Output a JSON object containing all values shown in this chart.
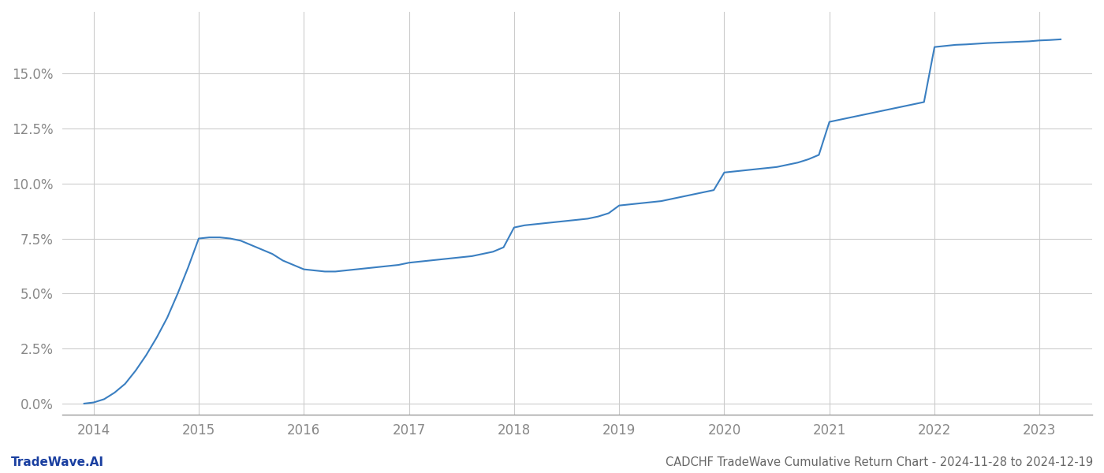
{
  "x_years": [
    2013.91,
    2014.0,
    2014.1,
    2014.2,
    2014.3,
    2014.4,
    2014.5,
    2014.6,
    2014.7,
    2014.8,
    2014.9,
    2015.0,
    2015.1,
    2015.2,
    2015.3,
    2015.4,
    2015.5,
    2015.6,
    2015.7,
    2015.8,
    2015.9,
    2016.0,
    2016.1,
    2016.2,
    2016.3,
    2016.4,
    2016.5,
    2016.6,
    2016.7,
    2016.8,
    2016.9,
    2017.0,
    2017.1,
    2017.2,
    2017.3,
    2017.4,
    2017.5,
    2017.6,
    2017.7,
    2017.8,
    2017.9,
    2018.0,
    2018.1,
    2018.2,
    2018.3,
    2018.4,
    2018.5,
    2018.6,
    2018.7,
    2018.8,
    2018.9,
    2019.0,
    2019.1,
    2019.2,
    2019.3,
    2019.4,
    2019.5,
    2019.6,
    2019.7,
    2019.8,
    2019.9,
    2020.0,
    2020.1,
    2020.2,
    2020.3,
    2020.4,
    2020.5,
    2020.6,
    2020.7,
    2020.8,
    2020.9,
    2021.0,
    2021.1,
    2021.2,
    2021.3,
    2021.4,
    2021.5,
    2021.6,
    2021.7,
    2021.8,
    2021.9,
    2022.0,
    2022.1,
    2022.2,
    2022.3,
    2022.4,
    2022.5,
    2022.6,
    2022.7,
    2022.8,
    2022.9,
    2023.0,
    2023.1,
    2023.2
  ],
  "y_values": [
    0.0,
    0.05,
    0.2,
    0.5,
    0.9,
    1.5,
    2.2,
    3.0,
    3.9,
    5.0,
    6.2,
    7.5,
    7.55,
    7.55,
    7.5,
    7.4,
    7.2,
    7.0,
    6.8,
    6.5,
    6.3,
    6.1,
    6.05,
    6.0,
    6.0,
    6.05,
    6.1,
    6.15,
    6.2,
    6.25,
    6.3,
    6.4,
    6.45,
    6.5,
    6.55,
    6.6,
    6.65,
    6.7,
    6.8,
    6.9,
    7.1,
    8.0,
    8.1,
    8.15,
    8.2,
    8.25,
    8.3,
    8.35,
    8.4,
    8.5,
    8.65,
    9.0,
    9.05,
    9.1,
    9.15,
    9.2,
    9.3,
    9.4,
    9.5,
    9.6,
    9.7,
    10.5,
    10.55,
    10.6,
    10.65,
    10.7,
    10.75,
    10.85,
    10.95,
    11.1,
    11.3,
    12.8,
    12.9,
    13.0,
    13.1,
    13.2,
    13.3,
    13.4,
    13.5,
    13.6,
    13.7,
    16.2,
    16.25,
    16.3,
    16.32,
    16.35,
    16.38,
    16.4,
    16.42,
    16.44,
    16.46,
    16.5,
    16.52,
    16.55
  ],
  "line_color": "#3a7fc1",
  "line_width": 1.5,
  "background_color": "#ffffff",
  "grid_color": "#cccccc",
  "title": "CADCHF TradeWave Cumulative Return Chart - 2024-11-28 to 2024-12-19",
  "footer_left": "TradeWave.AI",
  "ytick_labels": [
    "0.0%",
    "2.5%",
    "5.0%",
    "7.5%",
    "10.0%",
    "12.5%",
    "15.0%"
  ],
  "ytick_values": [
    0.0,
    2.5,
    5.0,
    7.5,
    10.0,
    12.5,
    15.0
  ],
  "xtick_labels": [
    "2014",
    "2015",
    "2016",
    "2017",
    "2018",
    "2019",
    "2020",
    "2021",
    "2022",
    "2023"
  ],
  "xtick_values": [
    2014,
    2015,
    2016,
    2017,
    2018,
    2019,
    2020,
    2021,
    2022,
    2023
  ],
  "xlim": [
    2013.7,
    2023.5
  ],
  "ylim": [
    -0.5,
    17.8
  ],
  "title_fontsize": 10.5,
  "tick_fontsize": 12,
  "footer_fontsize": 11,
  "title_color": "#666666",
  "tick_color": "#888888",
  "footer_left_color": "#1a3fa0",
  "spine_color": "#999999"
}
